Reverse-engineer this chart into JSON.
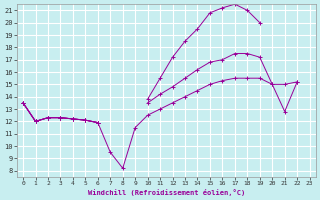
{
  "xlabel": "Windchill (Refroidissement éolien,°C)",
  "bg_color": "#c8eef0",
  "line_color": "#990099",
  "grid_color": "#ffffff",
  "xlim": [
    -0.5,
    23.5
  ],
  "ylim": [
    7.5,
    21.5
  ],
  "xticks": [
    0,
    1,
    2,
    3,
    4,
    5,
    6,
    7,
    8,
    9,
    10,
    11,
    12,
    13,
    14,
    15,
    16,
    17,
    18,
    19,
    20,
    21,
    22,
    23
  ],
  "yticks": [
    8,
    9,
    10,
    11,
    12,
    13,
    14,
    15,
    16,
    17,
    18,
    19,
    20,
    21
  ],
  "series": [
    {
      "x": [
        0,
        1,
        2,
        3,
        4,
        5,
        6,
        7,
        8,
        9,
        10,
        11,
        12,
        13,
        14,
        15,
        16,
        17,
        18,
        19,
        20,
        21,
        22,
        23
      ],
      "y": [
        13.5,
        12.0,
        12.3,
        12.3,
        12.2,
        12.1,
        11.9,
        9.5,
        8.2,
        11.5,
        12.5,
        13.0,
        13.5,
        14.0,
        14.5,
        15.0,
        15.3,
        15.5,
        15.5,
        15.5,
        15.0,
        15.0,
        15.2,
        null
      ]
    },
    {
      "x": [
        0,
        1,
        2,
        3,
        4,
        5,
        6,
        7,
        8,
        9,
        10,
        11,
        12,
        13,
        14,
        15,
        16,
        17,
        18,
        19,
        20,
        21,
        22,
        23
      ],
      "y": [
        13.5,
        12.0,
        12.3,
        12.3,
        12.2,
        12.1,
        11.9,
        null,
        null,
        null,
        null,
        null,
        null,
        null,
        null,
        null,
        null,
        null,
        null,
        null,
        null,
        null,
        null,
        null
      ]
    },
    {
      "x": [
        0,
        1,
        2,
        3,
        4,
        5,
        6,
        7,
        8,
        9,
        10,
        11,
        12,
        13,
        14,
        15,
        16,
        17,
        18,
        19,
        20,
        21,
        22,
        23
      ],
      "y": [
        13.5,
        12.0,
        12.3,
        12.3,
        12.2,
        12.1,
        11.9,
        null,
        null,
        null,
        13.5,
        14.2,
        14.8,
        15.5,
        16.2,
        16.8,
        17.0,
        17.5,
        17.5,
        17.2,
        15.0,
        12.8,
        15.2,
        null
      ]
    },
    {
      "x": [
        0,
        1,
        2,
        3,
        4,
        5,
        6,
        7,
        8,
        9,
        10,
        11,
        12,
        13,
        14,
        15,
        16,
        17,
        18,
        19,
        20,
        21,
        22,
        23
      ],
      "y": [
        13.5,
        12.0,
        12.3,
        12.3,
        12.2,
        12.1,
        11.9,
        null,
        null,
        null,
        13.8,
        15.5,
        17.2,
        18.5,
        19.5,
        20.8,
        21.2,
        21.5,
        21.0,
        20.0,
        null,
        null,
        null,
        null
      ]
    }
  ]
}
